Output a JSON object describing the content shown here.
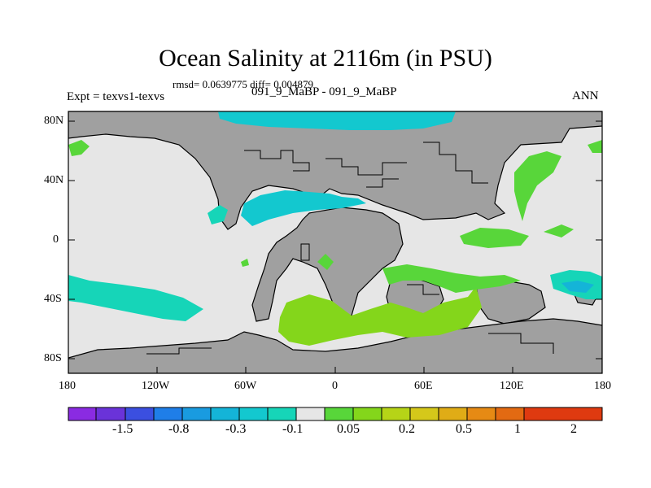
{
  "title": "Ocean Salinity at 2116m (in PSU)",
  "stats": "rmsd= 0.0639775 diff= 0.004879",
  "left_label": "Expt = texvs1-texvs",
  "center_label": "091_9_MaBP - 091_9_MaBP",
  "right_label": "ANN",
  "map": {
    "lat_labels": [
      "80N",
      "40N",
      "0",
      "40S",
      "80S"
    ],
    "lon_labels": [
      "180",
      "120W",
      "60W",
      "0",
      "60E",
      "120E",
      "180"
    ],
    "colors": {
      "land": "#a0a0a0",
      "ocean_neutral": "#e6e6e6",
      "coast": "#000000"
    }
  },
  "colorbar": {
    "colors": [
      "#8a2be2",
      "#6a33d9",
      "#3b4fe0",
      "#1f7ee8",
      "#199be0",
      "#14b4d8",
      "#13c8cf",
      "#16d5b8",
      "#e6e6e6",
      "#58d63a",
      "#84d61b",
      "#b6d417",
      "#d5c81a",
      "#e0ac16",
      "#e68a14",
      "#e36a12",
      "#df3a10"
    ],
    "labels": [
      "-1.5",
      "-0.8",
      "-0.3",
      "-0.1",
      "0.05",
      "0.2",
      "0.5",
      "1",
      "2"
    ]
  }
}
